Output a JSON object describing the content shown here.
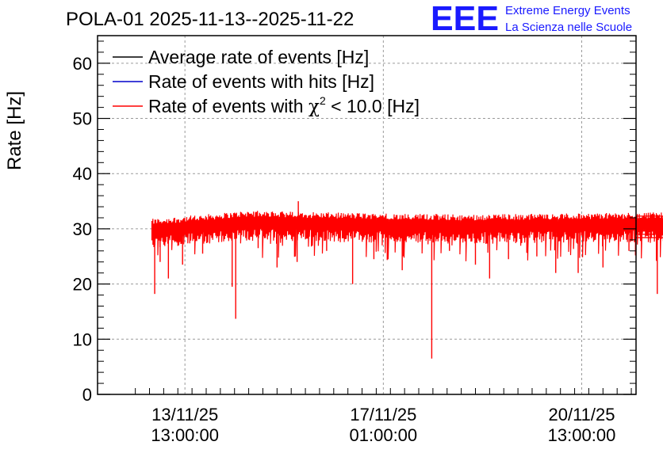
{
  "chart_data": {
    "type": "line",
    "title": "POLA-01 2025-11-13--2025-11-22",
    "xlabel": "",
    "ylabel": "Rate [Hz]",
    "ylim": [
      0,
      65
    ],
    "yticks": [
      0,
      10,
      20,
      30,
      40,
      50,
      60
    ],
    "grid": true,
    "legend_position": "top-left",
    "x_unit": "hours since 2025-11-13 00:00",
    "xlim": [
      -24,
      204
    ],
    "xticks": [
      {
        "x": 13,
        "line1": "13/11/25",
        "line2": "13:00:00"
      },
      {
        "x": 97,
        "line1": "17/11/25",
        "line2": "01:00:00"
      },
      {
        "x": 181,
        "line1": "20/11/25",
        "line2": "13:00:00"
      }
    ],
    "series": [
      {
        "name": "Average rate of events [Hz]",
        "color": "#000000",
        "label_main": "Average rate of events [Hz]"
      },
      {
        "name": "Rate of events with hits [Hz]",
        "color": "#0000cc",
        "label_main": "Rate of events with hits [Hz]"
      },
      {
        "name": "Rate of events with chi2 < 10.0 [Hz]",
        "color": "#ff0000",
        "label_pre": "Rate of events with ",
        "label_chi": "χ",
        "label_sup": "2",
        "label_post": " < 10.0 [Hz]"
      }
    ],
    "red_profile": {
      "x_start": -1,
      "x_end": 218.5,
      "baseline_points": [
        [
          -1,
          30.0
        ],
        [
          40,
          31.5
        ],
        [
          70,
          31.2
        ],
        [
          130,
          30.8
        ],
        [
          218.5,
          31.2
        ]
      ],
      "band_halfwidth": 1.8,
      "dips": [
        [
          0.2,
          18.2
        ],
        [
          2.5,
          24.0
        ],
        [
          6.0,
          21.0
        ],
        [
          12.0,
          23.5
        ],
        [
          20.5,
          25.5
        ],
        [
          33.0,
          19.5
        ],
        [
          34.5,
          13.7
        ],
        [
          44.0,
          26.5
        ],
        [
          52.0,
          23.0
        ],
        [
          60.5,
          24.0
        ],
        [
          73.0,
          26.0
        ],
        [
          84.0,
          20.0
        ],
        [
          93.0,
          24.5
        ],
        [
          105.0,
          22.5
        ],
        [
          117.5,
          6.5
        ],
        [
          125.0,
          26.0
        ],
        [
          136.0,
          23.5
        ],
        [
          142.0,
          21.0
        ],
        [
          150.0,
          24.5
        ],
        [
          162.0,
          25.0
        ],
        [
          170.0,
          22.0
        ],
        [
          179.5,
          22.0
        ],
        [
          190.0,
          23.0
        ],
        [
          201.0,
          26.0
        ],
        [
          213.0,
          18.2
        ],
        [
          216.0,
          26.5
        ]
      ],
      "tail_lines": [
        32.3,
        31.8,
        31.0,
        30.5,
        29.6,
        29.0,
        28.4
      ],
      "tail_x_end": 221.0,
      "peak": [
        61.0,
        35.0
      ]
    }
  },
  "logo": {
    "text": "EEE",
    "line1": "Extreme Energy Events",
    "line2": "La Scienza nelle Scuole",
    "color": "#1a1aff"
  }
}
